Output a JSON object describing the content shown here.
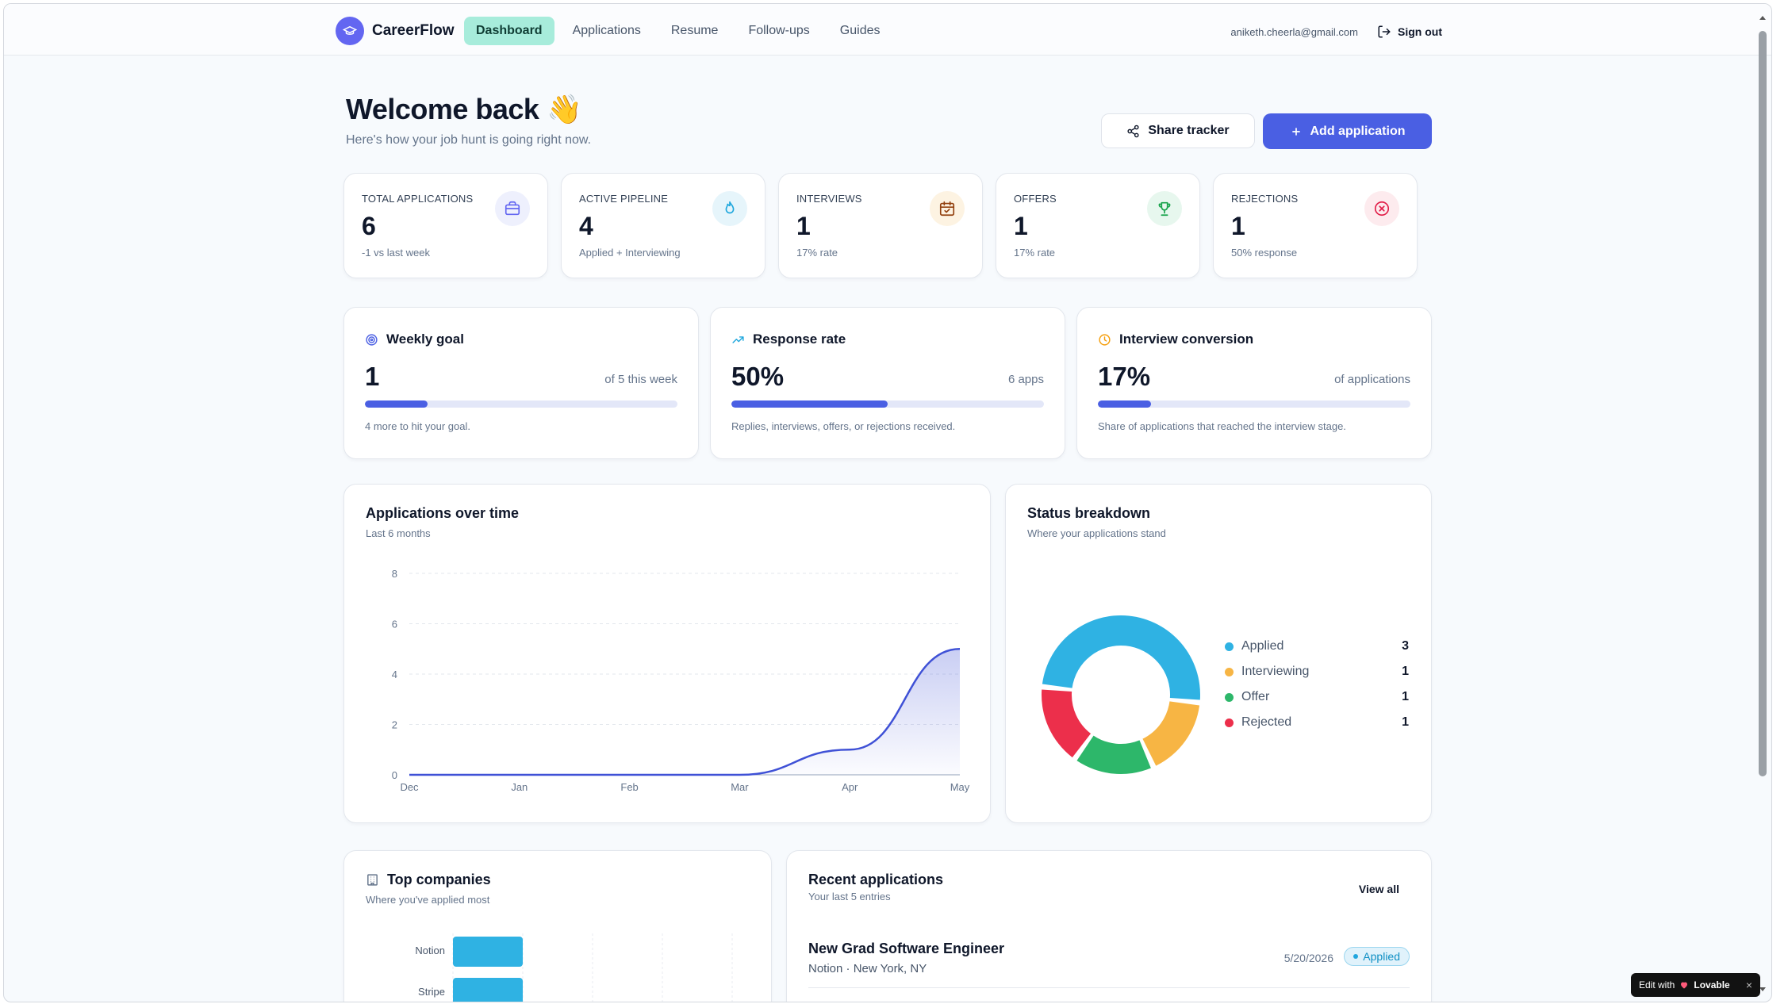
{
  "nav": {
    "brand": "CareerFlow",
    "links": [
      "Dashboard",
      "Applications",
      "Resume",
      "Follow-ups",
      "Guides"
    ],
    "active": "Dashboard",
    "email": "aniketh.cheerla@gmail.com",
    "signout": "Sign out"
  },
  "header": {
    "title": "Welcome back 👋",
    "subtitle": "Here's how your job hunt is going right now.",
    "share_label": "Share tracker",
    "add_label": "Add application"
  },
  "stats": [
    {
      "label": "Total applications",
      "value": "6",
      "sub": "-1 vs last week",
      "icon": "briefcase-icon",
      "color": "#6366f1",
      "bg": "#eef0fd"
    },
    {
      "label": "Active pipeline",
      "value": "4",
      "sub": "Applied + Interviewing",
      "icon": "flame-icon",
      "color": "#1ea7dd",
      "bg": "#e6f5fb"
    },
    {
      "label": "Interviews",
      "value": "1",
      "sub": "17% rate",
      "icon": "calendar-icon",
      "color": "#92400e",
      "bg": "#fdf3e2"
    },
    {
      "label": "Offers",
      "value": "1",
      "sub": "17% rate",
      "icon": "trophy-icon",
      "color": "#16a34a",
      "bg": "#e7f7ee"
    },
    {
      "label": "Rejections",
      "value": "1",
      "sub": "50% response",
      "icon": "x-circle-icon",
      "color": "#e11d48",
      "bg": "#fdebee"
    }
  ],
  "metrics": [
    {
      "title": "Weekly goal",
      "value": "1",
      "right": "of 5 this week",
      "progress": 0.2,
      "sub": "4 more to hit your goal.",
      "icon": "target-icon",
      "icon_color": "#4a5fe3"
    },
    {
      "title": "Response rate",
      "value": "50%",
      "right": "6 apps",
      "progress": 0.5,
      "sub": "Replies, interviews, offers, or rejections received.",
      "icon": "trend-up-icon",
      "icon_color": "#1ea7dd"
    },
    {
      "title": "Interview conversion",
      "value": "17%",
      "right": "of applications",
      "progress": 0.17,
      "sub": "Share of applications that reached the interview stage.",
      "icon": "clock-icon",
      "icon_color": "#f59e0b"
    }
  ],
  "over_time": {
    "title": "Applications over time",
    "subtitle": "Last 6 months"
  },
  "status": {
    "title": "Status breakdown",
    "subtitle": "Where your applications stand",
    "items": [
      {
        "name": "Applied",
        "count": "3",
        "color": "#2fb2e3"
      },
      {
        "name": "Interviewing",
        "count": "1",
        "color": "#f7b544"
      },
      {
        "name": "Offer",
        "count": "1",
        "color": "#2db76a"
      },
      {
        "name": "Rejected",
        "count": "1",
        "color": "#ec2f4b"
      }
    ]
  },
  "companies": {
    "title": "Top companies",
    "subtitle": "Where you've applied most",
    "items": [
      {
        "name": "Notion",
        "value": 1
      },
      {
        "name": "Stripe",
        "value": 1
      }
    ]
  },
  "recent": {
    "title": "Recent applications",
    "subtitle": "Your last 5 entries",
    "view_all": "View all",
    "items": [
      {
        "title": "New Grad Software Engineer",
        "meta": "Notion · New York, NY",
        "date": "5/20/2026",
        "status": "Applied"
      }
    ]
  },
  "lovable": {
    "prefix": "Edit with",
    "brand": "Lovable"
  },
  "chart_data": [
    {
      "type": "area",
      "title": "Applications over time",
      "x": [
        "Dec",
        "Jan",
        "Feb",
        "Mar",
        "Apr",
        "May"
      ],
      "series": [
        {
          "values": [
            0,
            0,
            0,
            0,
            1,
            5
          ]
        }
      ],
      "ylim": [
        0,
        8
      ],
      "yticks": [
        0,
        2,
        4,
        6,
        8
      ],
      "color": "#3f51d6",
      "grid": true
    },
    {
      "type": "pie",
      "title": "Status breakdown",
      "labels": [
        "Applied",
        "Interviewing",
        "Offer",
        "Rejected"
      ],
      "values": [
        3,
        1,
        1,
        1
      ],
      "colors": [
        "#2fb2e3",
        "#f7b544",
        "#2db76a",
        "#ec2f4b"
      ],
      "legend": "right"
    },
    {
      "type": "bar",
      "title": "Top companies",
      "categories": [
        "Notion",
        "Stripe"
      ],
      "values": [
        1,
        1
      ],
      "color": "#2fb2e3"
    }
  ]
}
